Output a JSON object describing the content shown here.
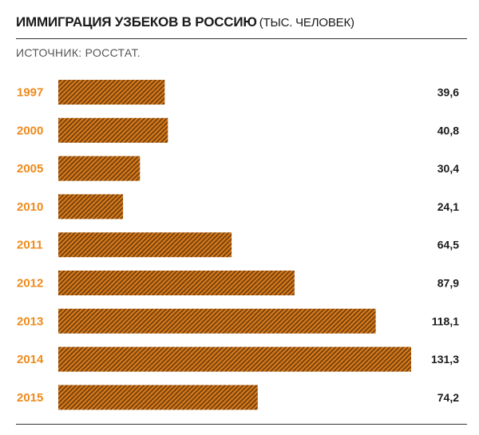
{
  "header": {
    "title": "ИММИГРАЦИЯ УЗБЕКОВ В РОССИЮ",
    "unit": "(ТЫС. ЧЕЛОВЕК)",
    "source": "ИСТОЧНИК: РОССТАТ."
  },
  "colors": {
    "bar": "#d4791a",
    "bar_hatch": "#6b3a0c",
    "year_label": "#ee8a1c",
    "value_label": "#1a1a1a"
  },
  "chart_data": {
    "type": "bar",
    "orientation": "horizontal",
    "title": "ИММИГРАЦИЯ УЗБЕКОВ В РОССИЮ",
    "subtitle": "(ТЫС. ЧЕЛОВЕК)",
    "source": "ИСТОЧНИК: РОССТАТ.",
    "categories": [
      "1997",
      "2000",
      "2005",
      "2010",
      "2011",
      "2012",
      "2013",
      "2014",
      "2015"
    ],
    "values": [
      39.6,
      40.8,
      30.4,
      24.1,
      64.5,
      87.9,
      118.1,
      131.3,
      74.2
    ],
    "value_labels": [
      "39,6",
      "40,8",
      "30,4",
      "24,1",
      "64,5",
      "87,9",
      "118,1",
      "131,3",
      "74,2"
    ],
    "xlim": [
      0,
      131.3
    ],
    "grid": false,
    "legend": "none"
  }
}
